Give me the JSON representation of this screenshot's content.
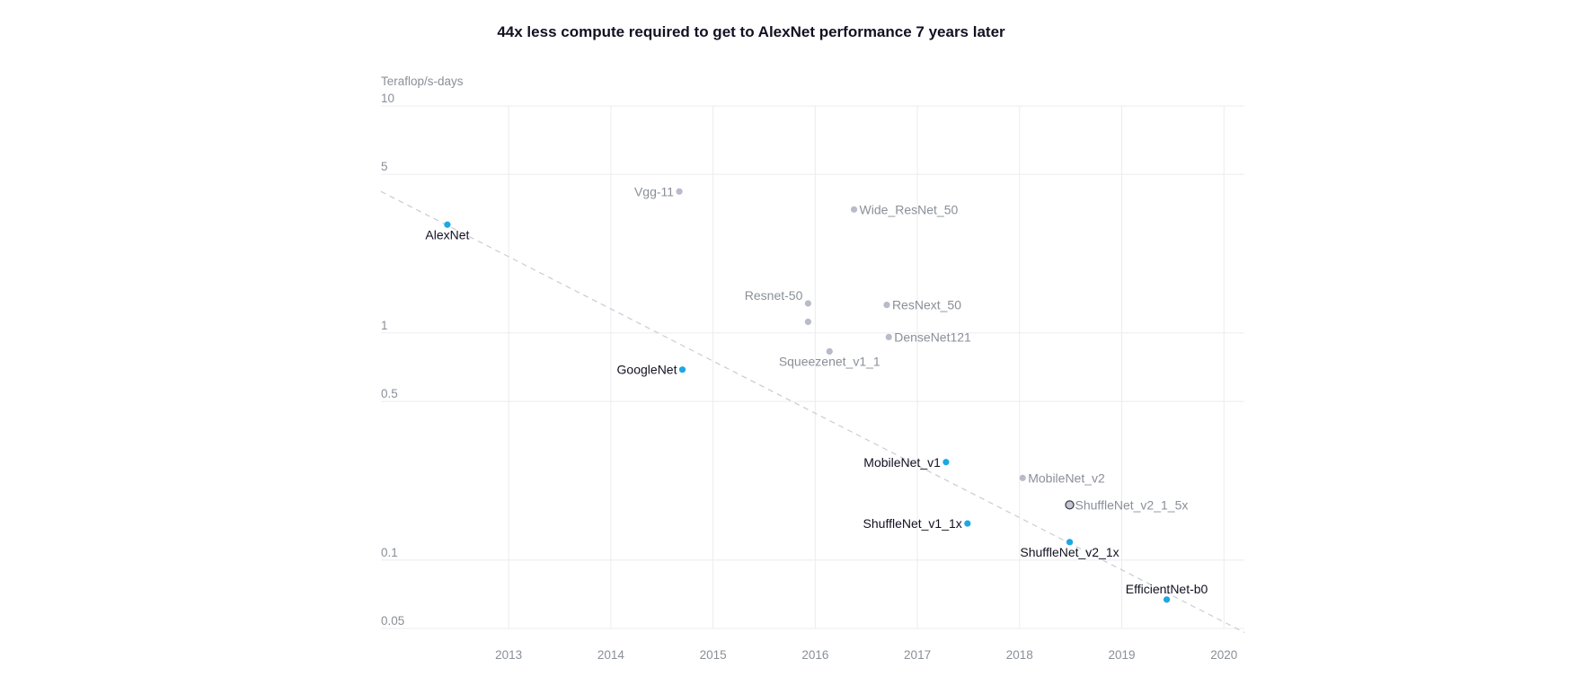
{
  "colors": {
    "highlight_point": "#1ba8e3",
    "muted_point": "#b8bbc8",
    "outlined_point_fill": "#c4c6d2",
    "outlined_point_stroke": "#3a3d4a"
  },
  "chart_data": {
    "type": "scatter",
    "title": "44x less compute required to get to AlexNet performance 7 years later",
    "xlabel": "",
    "ylabel": "Teraflop/s-days",
    "yscale": "log",
    "xlim": [
      2011.75,
      2020.2
    ],
    "ylim": [
      0.05,
      10
    ],
    "xticks": [
      2013,
      2014,
      2015,
      2016,
      2017,
      2018,
      2019,
      2020
    ],
    "xtick_labels": [
      "2013",
      "2014",
      "2015",
      "2016",
      "2017",
      "2018",
      "2019",
      "2020"
    ],
    "yticks": [
      10,
      5,
      1,
      0.5,
      0.1,
      0.05
    ],
    "ytick_labels": [
      "10",
      "5",
      "1",
      "0.5",
      "0.1",
      "0.05"
    ],
    "grid": true,
    "trendline": {
      "x": [
        2011.75,
        2020.2
      ],
      "y": [
        4.2,
        0.048
      ],
      "style": "dashed"
    },
    "points": [
      {
        "name": "AlexNet",
        "x": 2012.4,
        "y": 3.0,
        "group": "highlight",
        "label": "AlexNet",
        "label_pos": "below"
      },
      {
        "name": "Vgg-11",
        "x": 2014.67,
        "y": 4.2,
        "group": "muted",
        "label": "Vgg-11",
        "label_pos": "left"
      },
      {
        "name": "Wide_ResNet_50",
        "x": 2016.38,
        "y": 3.5,
        "group": "muted",
        "label": "Wide_ResNet_50",
        "label_pos": "right"
      },
      {
        "name": "Resnet-50",
        "x": 2015.93,
        "y": 1.35,
        "group": "muted",
        "label": "Resnet-50",
        "label_pos": "left-above"
      },
      {
        "name": "Resnet-unlabeled",
        "x": 2015.93,
        "y": 1.12,
        "group": "muted",
        "label": "",
        "label_pos": "none"
      },
      {
        "name": "ResNext_50",
        "x": 2016.7,
        "y": 1.33,
        "group": "muted",
        "label": "ResNext_50",
        "label_pos": "right"
      },
      {
        "name": "DenseNet121",
        "x": 2016.72,
        "y": 0.96,
        "group": "muted",
        "label": "DenseNet121",
        "label_pos": "right"
      },
      {
        "name": "Squeezenet_v1_1",
        "x": 2016.14,
        "y": 0.83,
        "group": "muted",
        "label": "Squeezenet_v1_1",
        "label_pos": "below"
      },
      {
        "name": "GoogleNet",
        "x": 2014.7,
        "y": 0.69,
        "group": "highlight",
        "label": "GoogleNet",
        "label_pos": "left"
      },
      {
        "name": "MobileNet_v1",
        "x": 2017.28,
        "y": 0.27,
        "group": "highlight",
        "label": "MobileNet_v1",
        "label_pos": "left"
      },
      {
        "name": "MobileNet_v2",
        "x": 2018.03,
        "y": 0.23,
        "group": "muted",
        "label": "MobileNet_v2",
        "label_pos": "right"
      },
      {
        "name": "ShuffleNet_v2_1_5x",
        "x": 2018.49,
        "y": 0.175,
        "group": "outlined",
        "label": "ShuffleNet_v2_1_5x",
        "label_pos": "right"
      },
      {
        "name": "ShuffleNet_v1_1x",
        "x": 2017.49,
        "y": 0.145,
        "group": "highlight",
        "label": "ShuffleNet_v1_1x",
        "label_pos": "left"
      },
      {
        "name": "ShuffleNet_v2_1x",
        "x": 2018.49,
        "y": 0.12,
        "group": "highlight",
        "label": "ShuffleNet_v2_1x",
        "label_pos": "below"
      },
      {
        "name": "EfficientNet-b0",
        "x": 2019.44,
        "y": 0.067,
        "group": "highlight",
        "label": "EfficientNet-b0",
        "label_pos": "above"
      }
    ]
  }
}
